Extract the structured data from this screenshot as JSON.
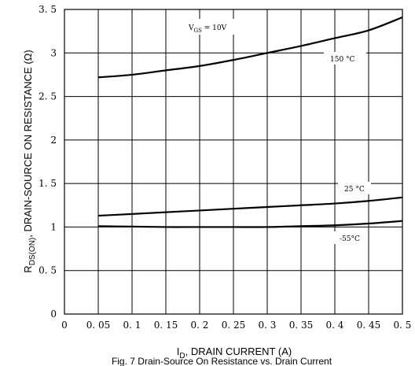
{
  "chart_data": {
    "type": "line",
    "xlabel_main": "I",
    "xlabel_sub": "D",
    "xlabel_rest": ", DRAIN CURRENT (A)",
    "ylabel_main": "R",
    "ylabel_sub": "DS(ON)",
    "ylabel_rest": ", DRAIN-SOURCE ON RESISTANCE (Ω)",
    "caption": "Fig. 7  Drain-Source On Resistance vs. Drain Current",
    "xlim": [
      0,
      0.5
    ],
    "ylim": [
      0,
      3.5
    ],
    "x_ticks": [
      0,
      0.05,
      0.1,
      0.15,
      0.2,
      0.25,
      0.3,
      0.35,
      0.4,
      0.45,
      0.5
    ],
    "x_tick_labels": [
      "0",
      "0. 05",
      "0. 1",
      "0. 15",
      "0. 2",
      "0. 25",
      "0. 3",
      "0. 35",
      "0. 4",
      "0. 45",
      "0. 5"
    ],
    "y_ticks": [
      0,
      0.5,
      1,
      1.5,
      2,
      2.5,
      3,
      3.5
    ],
    "y_tick_labels": [
      "0",
      "0. 5",
      "1",
      "1. 5",
      "2",
      "2. 5",
      "3",
      "3. 5"
    ],
    "grid": true,
    "condition_label_main": "V",
    "condition_label_sub": "GS",
    "condition_label_rest": " =  10V",
    "series": [
      {
        "name": "150 °C",
        "x": [
          0.05,
          0.1,
          0.15,
          0.2,
          0.25,
          0.3,
          0.35,
          0.4,
          0.45,
          0.5
        ],
        "y": [
          2.72,
          2.75,
          2.8,
          2.85,
          2.92,
          3.0,
          3.08,
          3.17,
          3.26,
          3.41
        ]
      },
      {
        "name": "25 °C",
        "x": [
          0.05,
          0.1,
          0.15,
          0.2,
          0.25,
          0.3,
          0.35,
          0.4,
          0.45,
          0.5
        ],
        "y": [
          1.13,
          1.15,
          1.17,
          1.19,
          1.21,
          1.23,
          1.25,
          1.27,
          1.3,
          1.34
        ]
      },
      {
        "name": "-55°C",
        "x": [
          0.05,
          0.1,
          0.15,
          0.2,
          0.25,
          0.3,
          0.35,
          0.4,
          0.45,
          0.5
        ],
        "y": [
          1.01,
          1.005,
          1.0,
          1.0,
          1.0,
          1.0,
          1.01,
          1.02,
          1.04,
          1.07
        ]
      }
    ]
  }
}
